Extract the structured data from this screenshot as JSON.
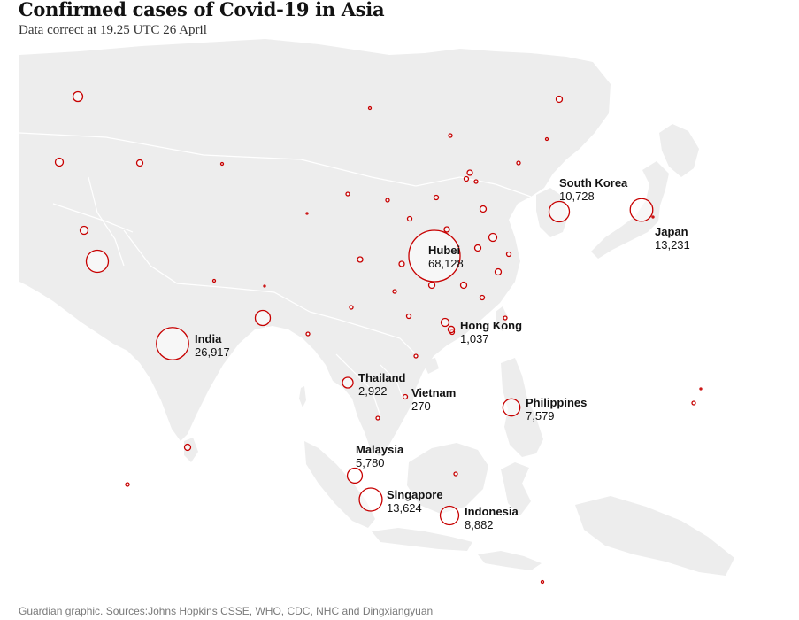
{
  "header": {
    "title": "Confirmed cases of Covid-19 in Asia",
    "subtitle": "Data correct at 19.25 UTC 26 April"
  },
  "footer": {
    "source": "Guardian graphic. Sources:Johns Hopkins CSSE, WHO, CDC, NHC and Dingxiangyuan"
  },
  "colors": {
    "land": "#ededed",
    "border": "#ffffff",
    "bubble_stroke": "#c70000",
    "bubble_fill": "rgba(255,255,255,0.55)"
  },
  "locations": [
    {
      "name": "Hubei",
      "cases": 68128,
      "cases_label": "68,128"
    },
    {
      "name": "India",
      "cases": 26917,
      "cases_label": "26,917"
    },
    {
      "name": "Singapore",
      "cases": 13624,
      "cases_label": "13,624"
    },
    {
      "name": "Japan",
      "cases": 13231,
      "cases_label": "13,231"
    },
    {
      "name": "South Korea",
      "cases": 10728,
      "cases_label": "10,728"
    },
    {
      "name": "Indonesia",
      "cases": 8882,
      "cases_label": "8,882"
    },
    {
      "name": "Philippines",
      "cases": 7579,
      "cases_label": "7,579"
    },
    {
      "name": "Malaysia",
      "cases": 5780,
      "cases_label": "5,780"
    },
    {
      "name": "Thailand",
      "cases": 2922,
      "cases_label": "2,922"
    },
    {
      "name": "Hong Kong",
      "cases": 1037,
      "cases_label": "1,037"
    },
    {
      "name": "Vietnam",
      "cases": 270,
      "cases_label": "270"
    }
  ]
}
